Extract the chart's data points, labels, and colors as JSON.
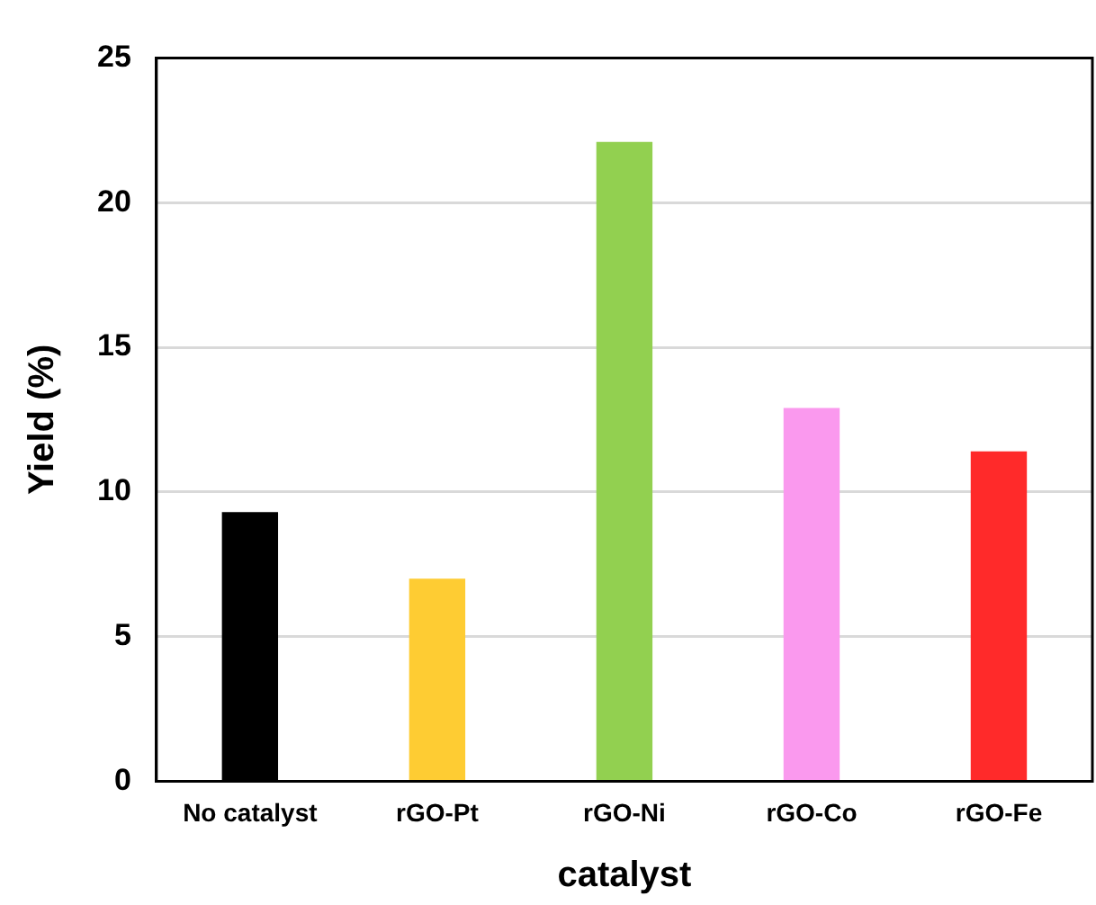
{
  "chart_data": {
    "type": "bar",
    "xlabel": "catalyst",
    "ylabel": "Yield (%)",
    "categories": [
      "No catalyst",
      "rGO-Pt",
      "rGO-Ni",
      "rGO-Co",
      "rGO-Fe"
    ],
    "values": [
      9.3,
      7.0,
      22.1,
      12.9,
      11.4
    ],
    "colors": [
      "#000000",
      "#fecc33",
      "#92d050",
      "#fa99ee",
      "#ff2a2a"
    ],
    "ylim": [
      0,
      25
    ],
    "yticks": [
      0,
      5,
      10,
      15,
      20,
      25
    ],
    "grid": "y",
    "legend": false
  }
}
